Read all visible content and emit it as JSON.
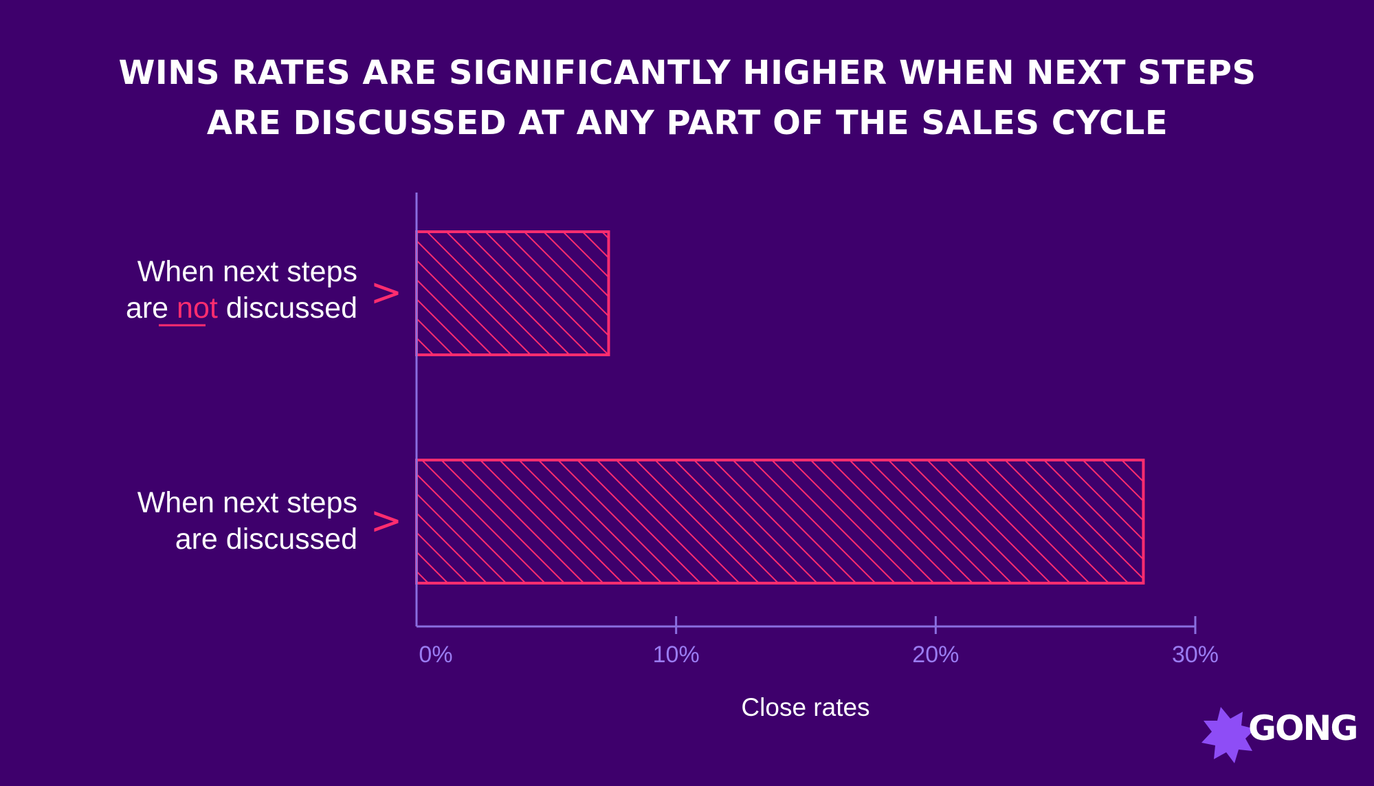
{
  "title": {
    "line1": "WINS RATES ARE SIGNIFICANTLY HIGHER WHEN NEXT STEPS",
    "line2": "ARE DISCUSSED AT ANY PART OF THE SALES CYCLE"
  },
  "colors": {
    "background": "#3e006c",
    "bar": "#ff2d6f",
    "axis": "#8a6ee0",
    "tick_label": "#9a7cf2",
    "text": "#ffffff"
  },
  "chart_data": {
    "type": "bar",
    "orientation": "horizontal",
    "categories": [
      "When next steps are not discussed",
      "When next steps are discussed"
    ],
    "category_lines": [
      {
        "line1": "When next steps",
        "line2_before": "are ",
        "line2_highlight": "not",
        "line2_after": " discussed"
      },
      {
        "line1": "When next steps",
        "line2_before": "are discussed",
        "line2_highlight": "",
        "line2_after": ""
      }
    ],
    "marker": ">",
    "values": [
      7.4,
      28
    ],
    "xlim": [
      0,
      30
    ],
    "ticks": [
      0,
      10,
      20,
      30
    ],
    "tick_labels": [
      "0%",
      "10%",
      "20%",
      "30%"
    ],
    "xlabel": "Close rates",
    "ylabel": "",
    "grid": false,
    "fill_pattern": "diagonal-hatch"
  },
  "brand": {
    "name": "GONG",
    "logo_icon": "starburst-icon"
  }
}
